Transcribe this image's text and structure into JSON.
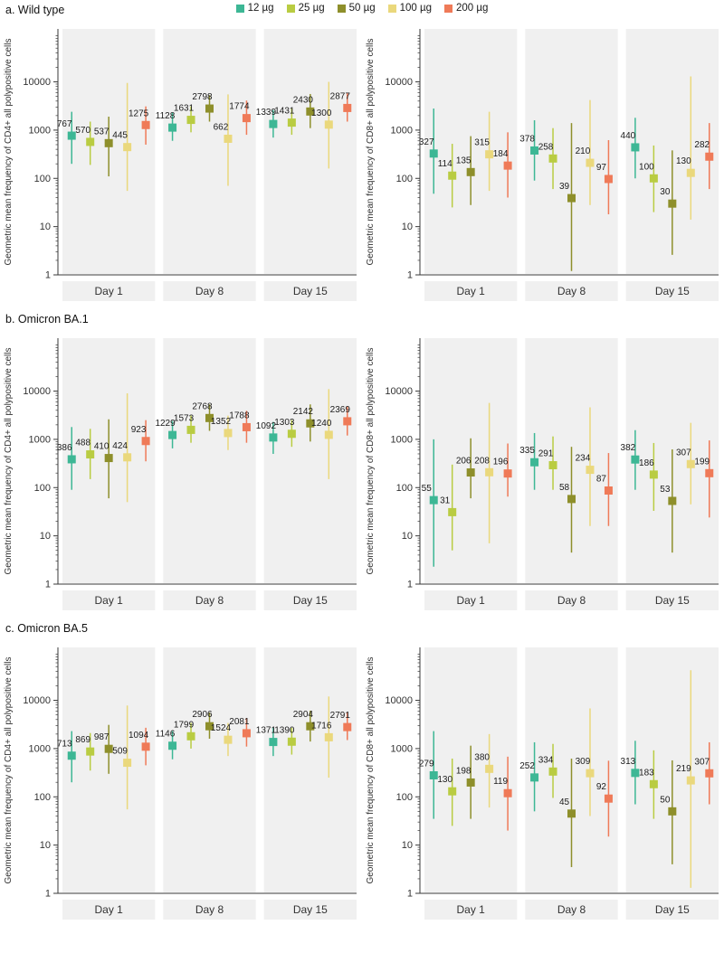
{
  "page": {
    "sections": [
      {
        "title": "a. Wild type"
      },
      {
        "title": "b. Omicron BA.1"
      },
      {
        "title": "c. Omicron BA.5"
      }
    ]
  },
  "legend": {
    "items": [
      {
        "label": "12 µg",
        "color": "#3db795"
      },
      {
        "label": "25 µg",
        "color": "#b9cc42"
      },
      {
        "label": "50 µg",
        "color": "#8e8f2b"
      },
      {
        "label": "100 µg",
        "color": "#ead87c"
      },
      {
        "label": "200 µg",
        "color": "#ef7a58"
      }
    ]
  },
  "axis": {
    "categories": [
      "Day 1",
      "Day 8",
      "Day 15"
    ],
    "yticks": [
      1,
      10,
      100,
      1000,
      10000
    ],
    "ylim": [
      1,
      125000
    ],
    "log_scale": true
  },
  "chart_data": [
    {
      "type": "scatter",
      "section": "a. Wild type",
      "ylabel": "Geometric mean frequency of CD4+ all polypositive cells",
      "categories": [
        "Day 1",
        "Day 8",
        "Day 15"
      ],
      "yticks": [
        1,
        10,
        100,
        1000,
        10000
      ],
      "series": [
        {
          "name": "12 µg",
          "color": "#3db795",
          "values": [
            767,
            1128,
            1339
          ],
          "lo": [
            200,
            600,
            700
          ],
          "hi": [
            2400,
            2300,
            2600
          ]
        },
        {
          "name": "25 µg",
          "color": "#b9cc42",
          "values": [
            570,
            1631,
            1431
          ],
          "lo": [
            190,
            900,
            800
          ],
          "hi": [
            1500,
            3100,
            2800
          ]
        },
        {
          "name": "50 µg",
          "color": "#8e8f2b",
          "values": [
            537,
            2798,
            2430
          ],
          "lo": [
            110,
            1500,
            1100
          ],
          "hi": [
            1900,
            5300,
            5600
          ]
        },
        {
          "name": "100 µg",
          "color": "#ead87c",
          "values": [
            445,
            662,
            1300
          ],
          "lo": [
            55,
            70,
            160
          ],
          "hi": [
            9500,
            5500,
            10000
          ]
        },
        {
          "name": "200 µg",
          "color": "#ef7a58",
          "values": [
            1275,
            1774,
            2877
          ],
          "lo": [
            500,
            800,
            1500
          ],
          "hi": [
            3100,
            4100,
            5900
          ]
        }
      ]
    },
    {
      "type": "scatter",
      "section": "a. Wild type",
      "ylabel": "Geometric mean frequency of CD8+ all polypositive cells",
      "categories": [
        "Day 1",
        "Day 8",
        "Day 15"
      ],
      "yticks": [
        1,
        10,
        100,
        1000,
        10000
      ],
      "series": [
        {
          "name": "12 µg",
          "color": "#3db795",
          "values": [
            327,
            378,
            440
          ],
          "lo": [
            48,
            90,
            100
          ],
          "hi": [
            2800,
            1600,
            1800
          ]
        },
        {
          "name": "25 µg",
          "color": "#b9cc42",
          "values": [
            114,
            258,
            100
          ],
          "lo": [
            25,
            60,
            20
          ],
          "hi": [
            520,
            1100,
            480
          ]
        },
        {
          "name": "50 µg",
          "color": "#8e8f2b",
          "values": [
            135,
            39,
            30
          ],
          "lo": [
            28,
            1.2,
            2.6
          ],
          "hi": [
            750,
            1400,
            380
          ]
        },
        {
          "name": "100 µg",
          "color": "#ead87c",
          "values": [
            315,
            210,
            130
          ],
          "lo": [
            55,
            28,
            14
          ],
          "hi": [
            2400,
            4200,
            13000
          ]
        },
        {
          "name": "200 µg",
          "color": "#ef7a58",
          "values": [
            184,
            97,
            282
          ],
          "lo": [
            40,
            18,
            60
          ],
          "hi": [
            900,
            620,
            1400
          ]
        }
      ]
    },
    {
      "type": "scatter",
      "section": "b. Omicron BA.1",
      "ylabel": "Geometric mean frequency of CD4+ all polypositive cells",
      "categories": [
        "Day 1",
        "Day 8",
        "Day 15"
      ],
      "yticks": [
        1,
        10,
        100,
        1000,
        10000
      ],
      "series": [
        {
          "name": "12 µg",
          "color": "#3db795",
          "values": [
            386,
            1229,
            1092
          ],
          "lo": [
            90,
            650,
            500
          ],
          "hi": [
            1800,
            2400,
            2300
          ]
        },
        {
          "name": "25 µg",
          "color": "#b9cc42",
          "values": [
            488,
            1573,
            1303
          ],
          "lo": [
            150,
            850,
            700
          ],
          "hi": [
            1650,
            3100,
            2500
          ]
        },
        {
          "name": "50 µg",
          "color": "#8e8f2b",
          "values": [
            410,
            2768,
            2142
          ],
          "lo": [
            60,
            1500,
            900
          ],
          "hi": [
            2600,
            5300,
            5300
          ]
        },
        {
          "name": "100 µg",
          "color": "#ead87c",
          "values": [
            424,
            1352,
            1240
          ],
          "lo": [
            50,
            600,
            150
          ],
          "hi": [
            9000,
            3100,
            11000
          ]
        },
        {
          "name": "200 µg",
          "color": "#ef7a58",
          "values": [
            923,
            1788,
            2369
          ],
          "lo": [
            350,
            850,
            1200
          ],
          "hi": [
            2500,
            3900,
            4800
          ]
        }
      ]
    },
    {
      "type": "scatter",
      "section": "b. Omicron BA.1",
      "ylabel": "Geometric mean frequency of CD8+ all polypositive cells",
      "categories": [
        "Day 1",
        "Day 8",
        "Day 15"
      ],
      "yticks": [
        1,
        10,
        100,
        1000,
        10000
      ],
      "series": [
        {
          "name": "12 µg",
          "color": "#3db795",
          "values": [
            55,
            335,
            382
          ],
          "lo": [
            2.3,
            90,
            90
          ],
          "hi": [
            1000,
            1350,
            1550
          ]
        },
        {
          "name": "25 µg",
          "color": "#b9cc42",
          "values": [
            31,
            291,
            186
          ],
          "lo": [
            5,
            90,
            33
          ],
          "hi": [
            300,
            1150,
            840
          ]
        },
        {
          "name": "50 µg",
          "color": "#8e8f2b",
          "values": [
            206,
            58,
            53
          ],
          "lo": [
            60,
            4.5,
            4.5
          ],
          "hi": [
            1050,
            700,
            620
          ]
        },
        {
          "name": "100 µg",
          "color": "#ead87c",
          "values": [
            208,
            234,
            307
          ],
          "lo": [
            7,
            16,
            45
          ],
          "hi": [
            5700,
            4600,
            2200
          ]
        },
        {
          "name": "200 µg",
          "color": "#ef7a58",
          "values": [
            196,
            87,
            199
          ],
          "lo": [
            65,
            16,
            24
          ],
          "hi": [
            820,
            520,
            950
          ]
        }
      ]
    },
    {
      "type": "scatter",
      "section": "c. Omicron BA.5",
      "ylabel": "Geometric mean frequency of CD4+ all polypositive cells",
      "categories": [
        "Day 1",
        "Day 8",
        "Day 15"
      ],
      "yticks": [
        1,
        10,
        100,
        1000,
        10000
      ],
      "series": [
        {
          "name": "12 µg",
          "color": "#3db795",
          "values": [
            713,
            1146,
            1371
          ],
          "lo": [
            200,
            600,
            700
          ],
          "hi": [
            2300,
            2300,
            2700
          ]
        },
        {
          "name": "25 µg",
          "color": "#b9cc42",
          "values": [
            869,
            1799,
            1390
          ],
          "lo": [
            350,
            1000,
            750
          ],
          "hi": [
            2100,
            3400,
            2700
          ]
        },
        {
          "name": "50 µg",
          "color": "#8e8f2b",
          "values": [
            987,
            2906,
            2904
          ],
          "lo": [
            300,
            1600,
            1400
          ],
          "hi": [
            3100,
            5600,
            6100
          ]
        },
        {
          "name": "100 µg",
          "color": "#ead87c",
          "values": [
            509,
            1524,
            1716
          ],
          "lo": [
            55,
            700,
            250
          ],
          "hi": [
            7800,
            3400,
            12000
          ]
        },
        {
          "name": "200 µg",
          "color": "#ef7a58",
          "values": [
            1094,
            2081,
            2791
          ],
          "lo": [
            450,
            1100,
            1500
          ],
          "hi": [
            2700,
            4300,
            5600
          ]
        }
      ]
    },
    {
      "type": "scatter",
      "section": "c. Omicron BA.5",
      "ylabel": "Geometric mean frequency of CD8+ all polypositive cells",
      "categories": [
        "Day 1",
        "Day 8",
        "Day 15"
      ],
      "yticks": [
        1,
        10,
        100,
        1000,
        10000
      ],
      "series": [
        {
          "name": "12 µg",
          "color": "#3db795",
          "values": [
            279,
            252,
            313
          ],
          "lo": [
            35,
            50,
            70
          ],
          "hi": [
            2300,
            1350,
            1450
          ]
        },
        {
          "name": "25 µg",
          "color": "#b9cc42",
          "values": [
            130,
            334,
            183
          ],
          "lo": [
            25,
            95,
            35
          ],
          "hi": [
            620,
            1250,
            920
          ]
        },
        {
          "name": "50 µg",
          "color": "#8e8f2b",
          "values": [
            198,
            45,
            50
          ],
          "lo": [
            35,
            3.5,
            4
          ],
          "hi": [
            1150,
            620,
            570
          ]
        },
        {
          "name": "100 µg",
          "color": "#ead87c",
          "values": [
            380,
            309,
            219
          ],
          "lo": [
            60,
            40,
            1.3
          ],
          "hi": [
            2000,
            6800,
            42000
          ]
        },
        {
          "name": "200 µg",
          "color": "#ef7a58",
          "values": [
            119,
            92,
            307
          ],
          "lo": [
            20,
            15,
            70
          ],
          "hi": [
            680,
            560,
            1350
          ]
        }
      ]
    }
  ]
}
